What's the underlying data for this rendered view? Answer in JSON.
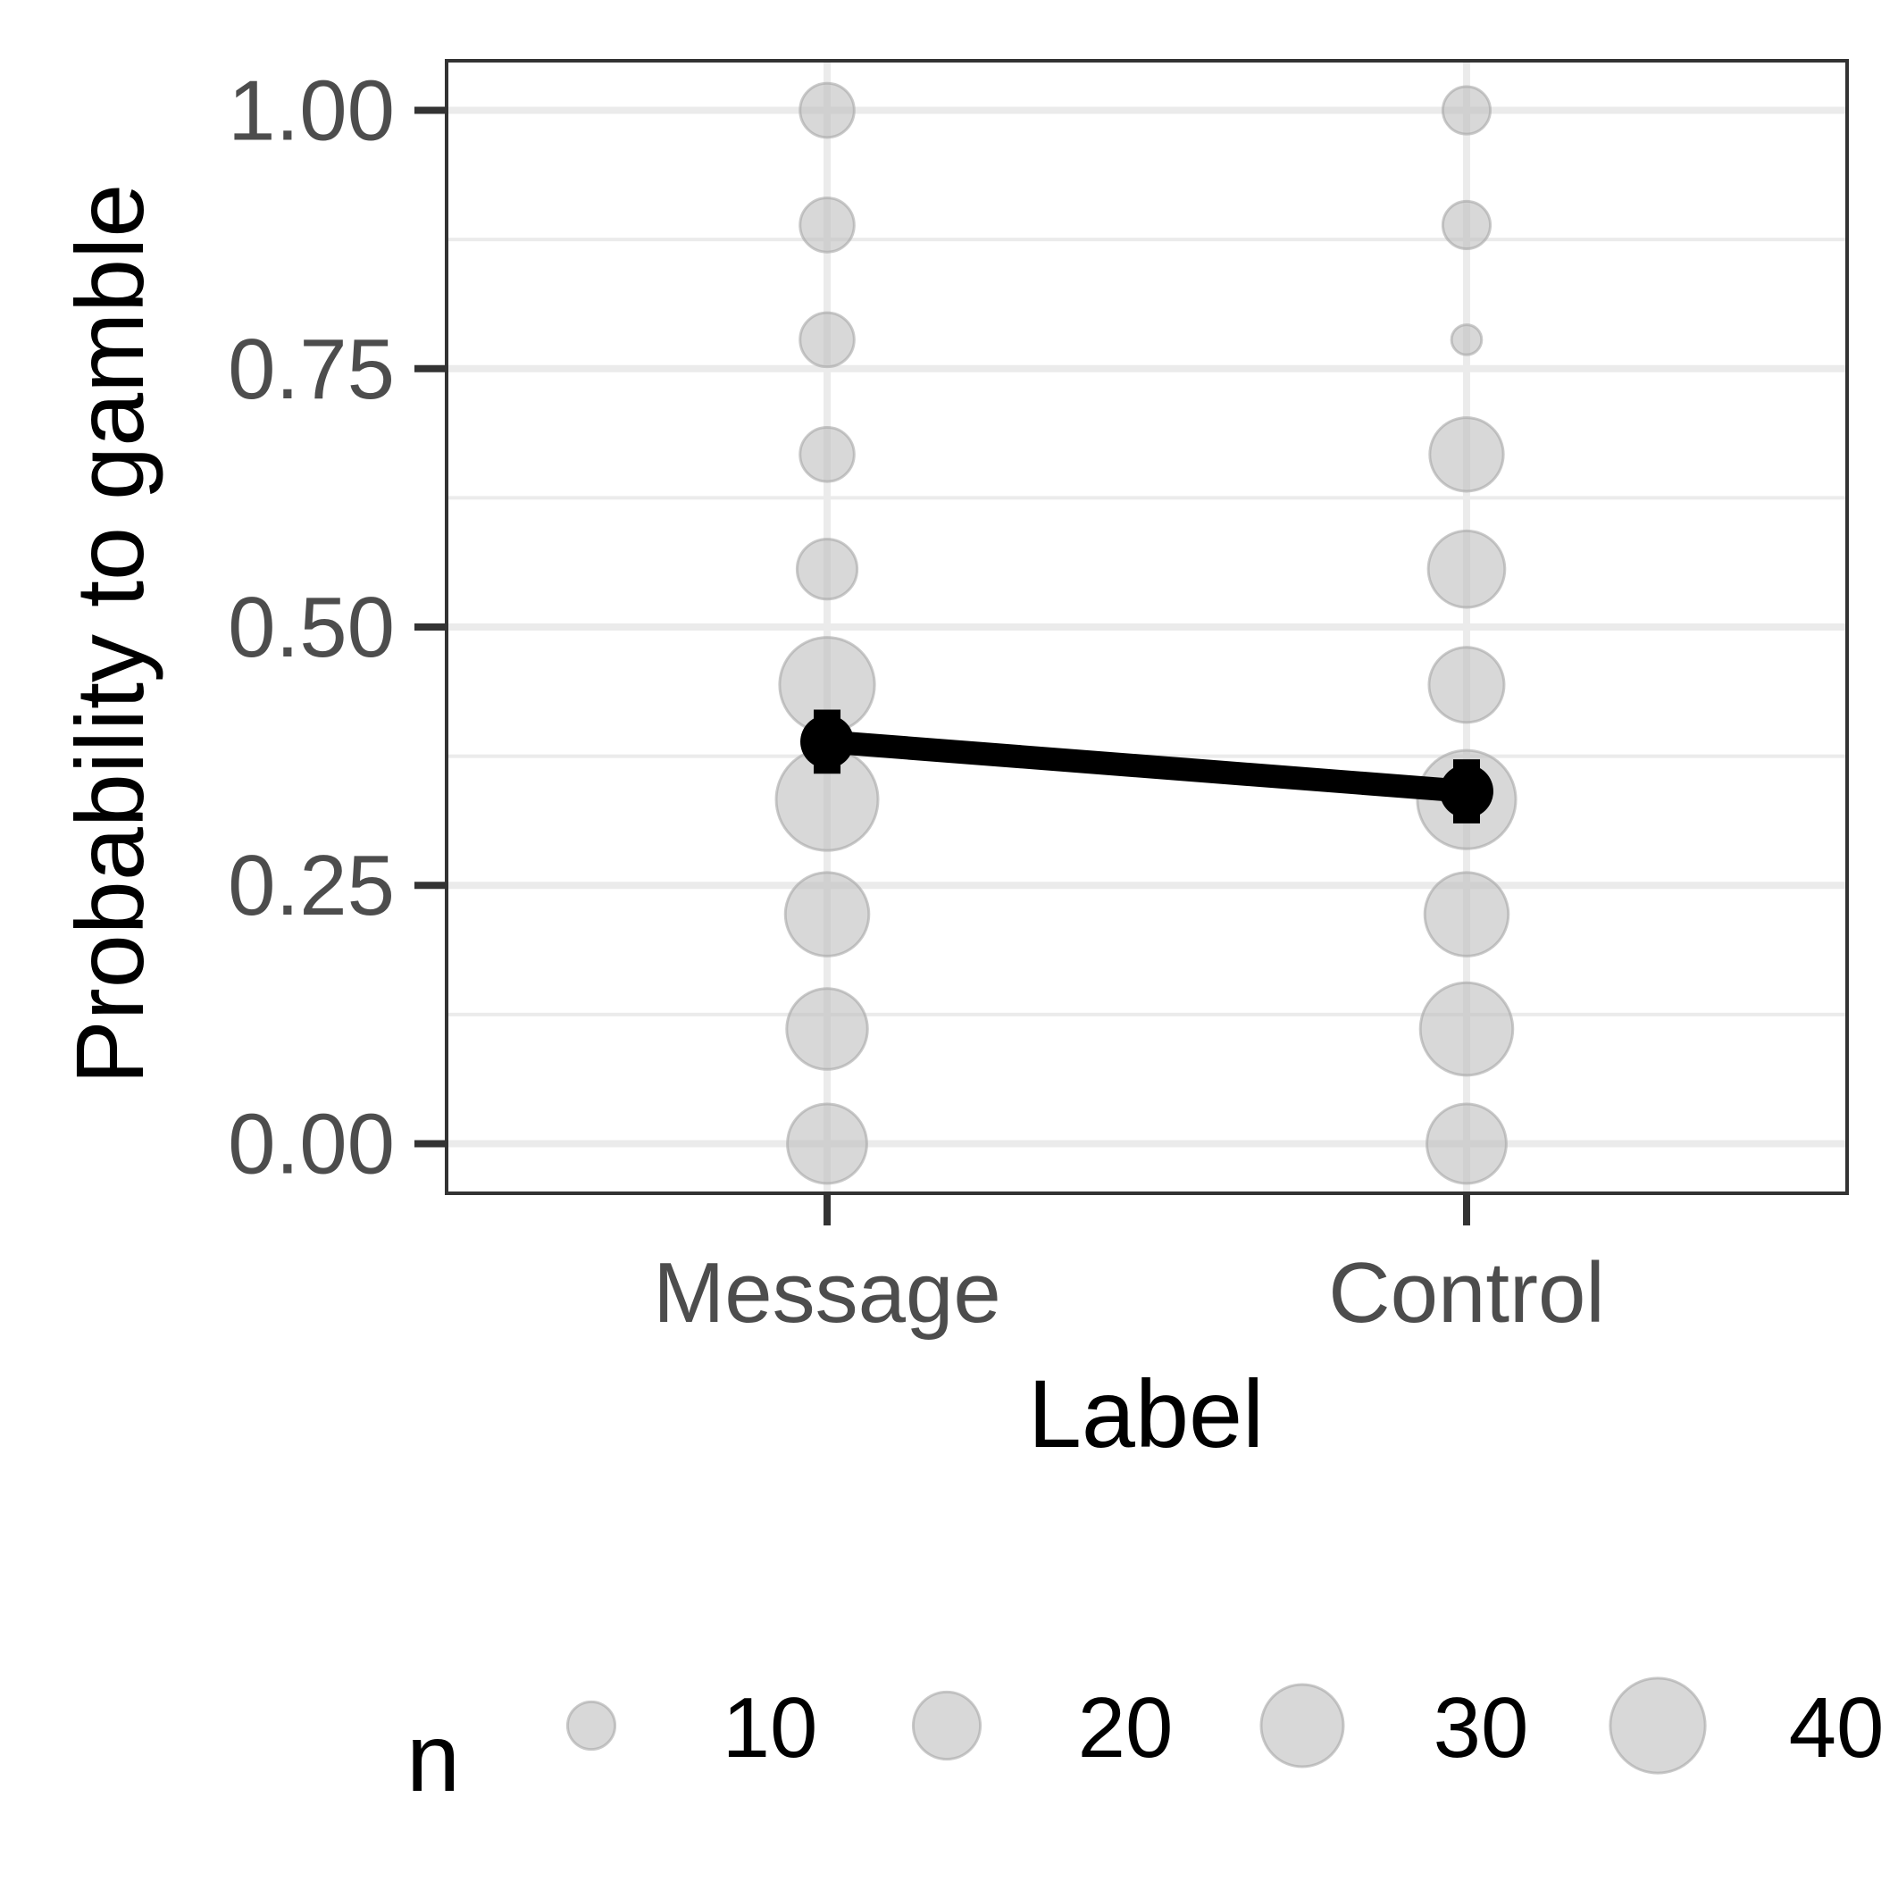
{
  "chart_data": {
    "type": "scatter",
    "title": "",
    "xlabel": "Label",
    "ylabel": "Probability to gamble",
    "categories": [
      "Message",
      "Control"
    ],
    "ylim": [
      -0.048,
      1.048
    ],
    "y_major_ticks": [
      0.0,
      0.25,
      0.5,
      0.75,
      1.0
    ],
    "y_tick_labels": [
      "0.00",
      "0.25",
      "0.50",
      "0.75",
      "1.00"
    ],
    "y_minor_ticks": [
      0.125,
      0.375,
      0.625,
      0.875
    ],
    "grid": true,
    "points": [
      {
        "category": "Message",
        "y": 1.0,
        "n": 13
      },
      {
        "category": "Message",
        "y": 0.889,
        "n": 13
      },
      {
        "category": "Message",
        "y": 0.778,
        "n": 13
      },
      {
        "category": "Message",
        "y": 0.667,
        "n": 13
      },
      {
        "category": "Message",
        "y": 0.556,
        "n": 16
      },
      {
        "category": "Message",
        "y": 0.444,
        "n": 40
      },
      {
        "category": "Message",
        "y": 0.333,
        "n": 46
      },
      {
        "category": "Message",
        "y": 0.222,
        "n": 31
      },
      {
        "category": "Message",
        "y": 0.111,
        "n": 29
      },
      {
        "category": "Message",
        "y": 0.0,
        "n": 28
      },
      {
        "category": "Control",
        "y": 1.0,
        "n": 10
      },
      {
        "category": "Control",
        "y": 0.889,
        "n": 10
      },
      {
        "category": "Control",
        "y": 0.778,
        "n": 4
      },
      {
        "category": "Control",
        "y": 0.667,
        "n": 24
      },
      {
        "category": "Control",
        "y": 0.556,
        "n": 26
      },
      {
        "category": "Control",
        "y": 0.444,
        "n": 25
      },
      {
        "category": "Control",
        "y": 0.333,
        "n": 43
      },
      {
        "category": "Control",
        "y": 0.222,
        "n": 31
      },
      {
        "category": "Control",
        "y": 0.111,
        "n": 38
      },
      {
        "category": "Control",
        "y": 0.0,
        "n": 28
      }
    ],
    "mean_series": {
      "name": "mean",
      "values": [
        0.389,
        0.341
      ],
      "error_low": [
        0.358,
        0.31
      ],
      "error_high": [
        0.42,
        0.372
      ]
    },
    "legend": {
      "title": "n",
      "position": "bottom",
      "values": [
        10,
        20,
        30,
        40
      ],
      "labels": [
        "10",
        "20",
        "30",
        "40"
      ]
    },
    "colors": {
      "point_fill": "#bebebe",
      "point_stroke": "#a6a6a6",
      "mean": "#000000",
      "grid": "#ebebeb",
      "panel_border": "#333333",
      "tick_text": "#4d4d4d"
    }
  }
}
